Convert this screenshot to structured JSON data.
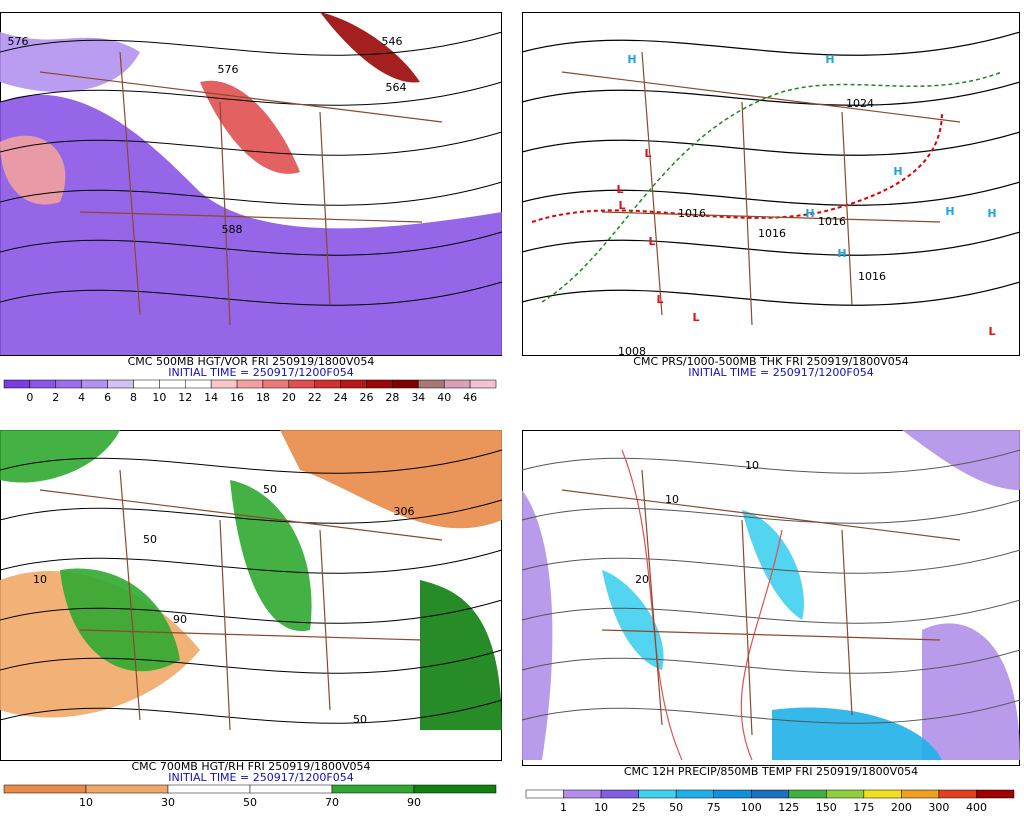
{
  "panels": [
    {
      "title": "CMC 500MB HGT/VOR FRI 250919/1800V054",
      "init": "INITIAL TIME = 250917/1200F054",
      "legend": {
        "labels": [
          "0",
          "2",
          "4",
          "6",
          "8",
          "10",
          "12",
          "14",
          "16",
          "18",
          "20",
          "22",
          "24",
          "26",
          "28",
          "34",
          "40",
          "46"
        ],
        "colors": [
          "#7a3de0",
          "#8b55e6",
          "#9c6cec",
          "#b392f0",
          "#d2c0f6",
          "#ffffff",
          "#ffffff",
          "#ffffff",
          "#f8c8c8",
          "#f2a0a0",
          "#ec7878",
          "#e05050",
          "#d03030",
          "#b81818",
          "#9a0808",
          "#800000",
          "#a87878",
          "#d8a0b8",
          "#f4c0d4"
        ]
      },
      "map_labels": [
        "576",
        "576",
        "546",
        "564",
        "588"
      ]
    },
    {
      "title": "CMC PRS/1000-500MB THK FRI 250919/1800V054",
      "init": "INITIAL TIME = 250917/1200F054",
      "legend": null,
      "map_labels": [
        "H",
        "H",
        "H",
        "H",
        "H",
        "H",
        "H",
        "L",
        "L",
        "L",
        "L",
        "L",
        "L",
        "L",
        "1016",
        "1024",
        "1016",
        "1016",
        "1016",
        "1008"
      ]
    },
    {
      "title": "CMC 700MB HGT/RH FRI 250919/1800V054",
      "init": "INITIAL TIME = 250917/1200F054",
      "legend": {
        "labels": [
          "10",
          "30",
          "50",
          "70",
          "90"
        ],
        "colors": [
          "#e88a48",
          "#f0a868",
          "#ffffff",
          "#ffffff",
          "#30a830",
          "#108010"
        ]
      },
      "map_labels": [
        "306",
        "50",
        "50",
        "90",
        "10",
        "50"
      ]
    },
    {
      "title": "CMC 12H PRECIP/850MB TEMP FRI 250919/1800V054",
      "init": null,
      "legend": {
        "labels": [
          "1",
          "10",
          "25",
          "50",
          "75",
          "100",
          "125",
          "150",
          "175",
          "200",
          "300",
          "400"
        ],
        "colors": [
          "#ffffff",
          "#b090e8",
          "#8060e0",
          "#40d0f0",
          "#20b0e8",
          "#1090d8",
          "#2070c0",
          "#40b040",
          "#90d040",
          "#f0e020",
          "#f0a020",
          "#e04020",
          "#a00000"
        ]
      },
      "map_labels": [
        "10",
        "10",
        "20"
      ]
    }
  ]
}
